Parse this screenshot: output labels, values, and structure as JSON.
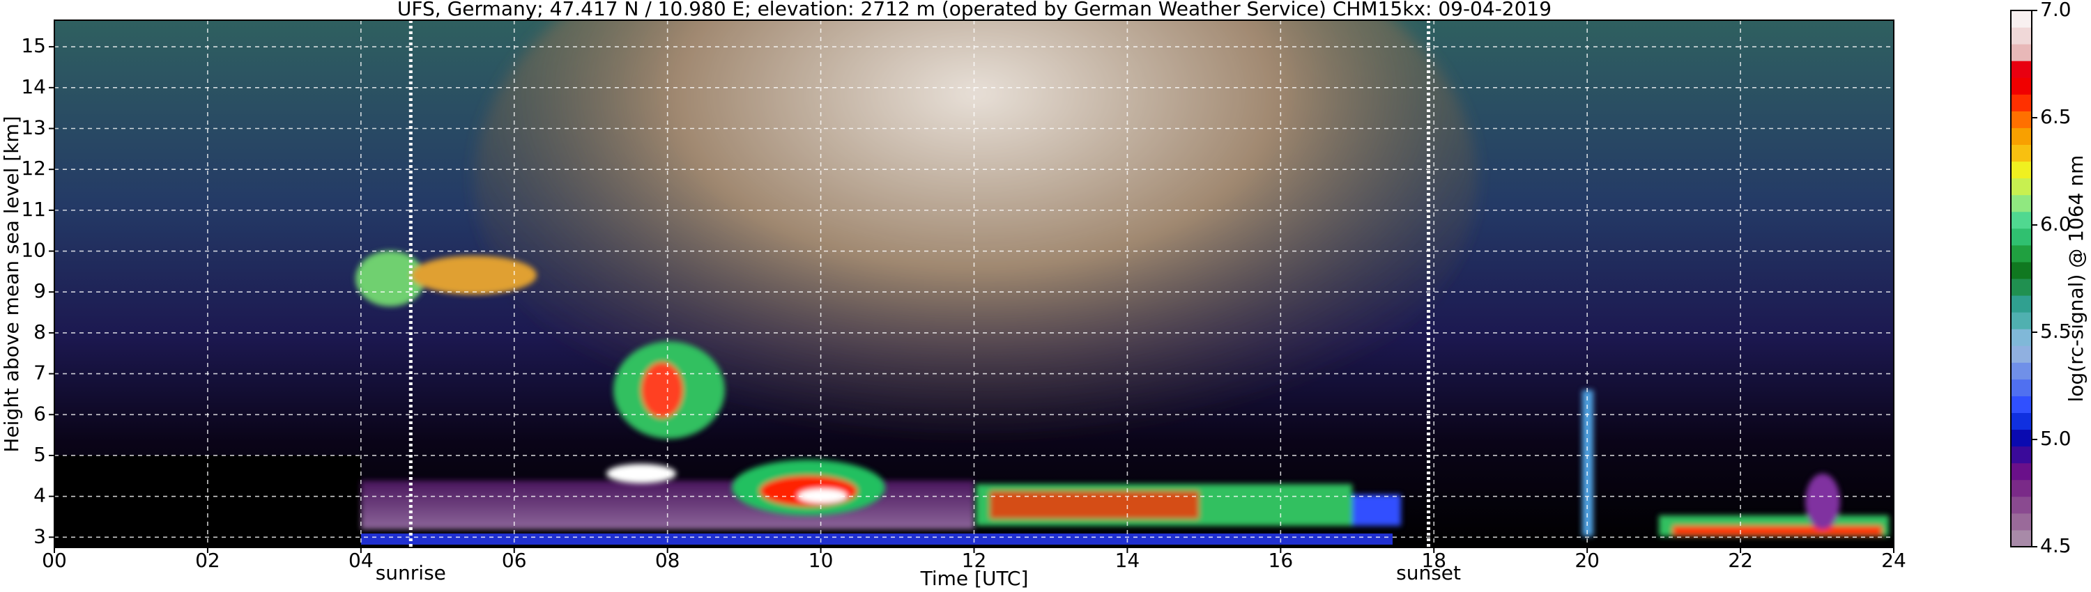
{
  "chart_data": {
    "type": "heatmap",
    "title": "UFS, Germany; 47.417 N / 10.980 E; elevation: 2712 m  (operated by German Weather Service)    CHM15kx: 09-04-2019",
    "xlabel": "Time [UTC]",
    "ylabel": "Height above mean sea level [km]",
    "xlim": [
      0,
      24
    ],
    "xticks": [
      {
        "value": 0,
        "label": "00"
      },
      {
        "value": 2,
        "label": "02"
      },
      {
        "value": 4,
        "label": "04"
      },
      {
        "value": 6,
        "label": "06"
      },
      {
        "value": 8,
        "label": "08"
      },
      10,
      12,
      14,
      16,
      18,
      20,
      22,
      24
    ],
    "ylim": [
      2.75,
      15.65
    ],
    "yticks": [
      3,
      4,
      5,
      6,
      7,
      8,
      9,
      10,
      11,
      12,
      13,
      14,
      15
    ],
    "grid": true,
    "annotations": [
      {
        "text": "sunrise",
        "x": 4.65
      },
      {
        "text": "sunset",
        "x": 17.93
      }
    ],
    "colorbar": {
      "label": "log(rc-signal) @ 1064 nm",
      "clim": [
        4.5,
        7.0
      ],
      "ticks": [
        4.5,
        {
          "value": 5,
          "label": "5.0"
        },
        5.5,
        {
          "value": 6,
          "label": "6.0"
        },
        6.5,
        {
          "value": 7,
          "label": "7.0"
        }
      ],
      "colors": [
        "#a88aa8",
        "#9a6a9a",
        "#8a4a90",
        "#7a2a88",
        "#6a108a",
        "#3a0a9a",
        "#0a0ab0",
        "#1030e0",
        "#3050ff",
        "#5070f0",
        "#7090e8",
        "#90b0e0",
        "#80b8d8",
        "#50b0b0",
        "#30a090",
        "#209050",
        "#107820",
        "#20a040",
        "#30c070",
        "#50d890",
        "#90e880",
        "#c8f050",
        "#f0f020",
        "#f8c010",
        "#f8a000",
        "#ff7000",
        "#ff3000",
        "#f00000",
        "#e80010",
        "#e8b8b8",
        "#f0d8d8",
        "#f8f0f0"
      ]
    }
  }
}
